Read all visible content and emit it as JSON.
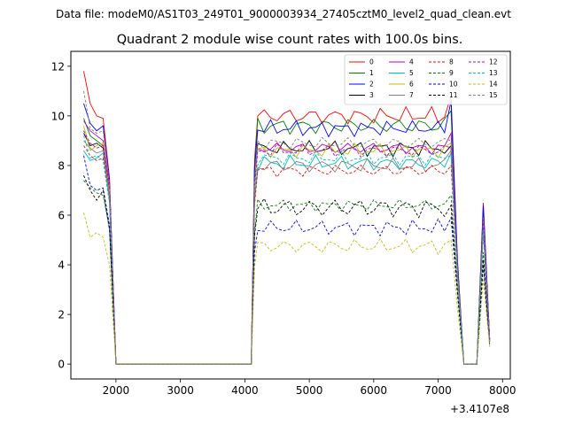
{
  "chart_data": {
    "type": "line",
    "suptitle": "Data file: modeM0/AS1T03_249T01_9000003934_27405cztM0_level2_quad_clean.evt",
    "title": "Quadrant 2 module wise count rates with 100.0s bins.",
    "xlabel": "",
    "ylabel": "",
    "x_offset_label": "+3.4107e8",
    "xlim": [
      1300,
      8120
    ],
    "ylim": [
      -0.6,
      12.6
    ],
    "xticks": [
      2000,
      3000,
      4000,
      5000,
      6000,
      7000,
      8000
    ],
    "xtick_labels": [
      "2000",
      "3000",
      "4000",
      "5000",
      "6000",
      "7000",
      "8000"
    ],
    "yticks": [
      0,
      2,
      4,
      6,
      8,
      10,
      12
    ],
    "ytick_labels": [
      "0",
      "2",
      "4",
      "6",
      "8",
      "10",
      "12"
    ],
    "legend_position": "upper right",
    "legend_columns": 4,
    "x": [
      1500,
      1600,
      1700,
      1800,
      1900,
      2000,
      4100,
      4200,
      4300,
      7200,
      7300,
      7400,
      7500,
      7600,
      7700,
      7800
    ],
    "series": [
      {
        "name": "0",
        "color": "#ff0000",
        "dashed": false,
        "start": [
          11.8,
          10.5,
          10.0,
          9.9,
          7.5
        ],
        "level": 10.0,
        "amp": 0.4,
        "end": [
          10.8,
          4.2
        ],
        "spike": 6.5,
        "last": 1.0
      },
      {
        "name": "1",
        "color": "#008000",
        "dashed": false,
        "start": [
          9.9,
          9.2,
          9.0,
          8.8,
          7.0
        ],
        "level": 9.6,
        "amp": 0.4,
        "end": [
          10.2,
          4.0
        ],
        "spike": 6.2,
        "last": 1.0
      },
      {
        "name": "2",
        "color": "#0000ff",
        "dashed": false,
        "start": [
          10.5,
          9.7,
          9.4,
          9.6,
          7.4
        ],
        "level": 9.5,
        "amp": 0.35,
        "end": [
          10.6,
          4.1
        ],
        "spike": 6.4,
        "last": 1.0
      },
      {
        "name": "3",
        "color": "#000000",
        "dashed": false,
        "start": [
          9.3,
          8.8,
          8.9,
          8.7,
          6.8
        ],
        "level": 8.7,
        "amp": 0.35,
        "end": [
          8.8,
          3.7
        ],
        "spike": 5.6,
        "last": 0.9
      },
      {
        "name": "4",
        "color": "#bf00bf",
        "dashed": false,
        "start": [
          9.8,
          9.4,
          9.2,
          9.0,
          7.2
        ],
        "level": 8.7,
        "amp": 0.3,
        "end": [
          9.3,
          3.8
        ],
        "spike": 5.9,
        "last": 1.0
      },
      {
        "name": "5",
        "color": "#00bfbf",
        "dashed": false,
        "start": [
          8.6,
          8.2,
          8.3,
          8.5,
          6.6
        ],
        "level": 8.1,
        "amp": 0.35,
        "end": [
          8.5,
          3.6
        ],
        "spike": 5.5,
        "last": 0.9
      },
      {
        "name": "6",
        "color": "#bfbf00",
        "dashed": false,
        "start": [
          9.6,
          8.6,
          8.8,
          8.9,
          6.9
        ],
        "level": 8.6,
        "amp": 0.3,
        "end": [
          8.9,
          3.7
        ],
        "spike": 5.7,
        "last": 0.9
      },
      {
        "name": "7",
        "color": "#808080",
        "dashed": false,
        "start": [
          9.0,
          8.7,
          8.5,
          8.6,
          6.7
        ],
        "level": 8.0,
        "amp": 0.35,
        "end": [
          8.6,
          3.6
        ],
        "spike": 5.5,
        "last": 0.9
      },
      {
        "name": "8",
        "color": "#ff0000",
        "dashed": true,
        "start": [
          8.8,
          8.4,
          8.2,
          8.3,
          6.5
        ],
        "level": 7.8,
        "amp": 0.3,
        "end": [
          8.0,
          3.5
        ],
        "spike": 5.3,
        "last": 0.9
      },
      {
        "name": "9",
        "color": "#008000",
        "dashed": true,
        "start": [
          7.4,
          7.1,
          6.9,
          6.8,
          5.5
        ],
        "level": 6.4,
        "amp": 0.25,
        "end": [
          6.8,
          3.0
        ],
        "spike": 4.5,
        "last": 0.8
      },
      {
        "name": "10",
        "color": "#0000ff",
        "dashed": true,
        "start": [
          8.4,
          7.2,
          7.0,
          7.1,
          5.6
        ],
        "level": 5.5,
        "amp": 0.35,
        "end": [
          5.9,
          2.8
        ],
        "spike": 4.0,
        "last": 0.8
      },
      {
        "name": "11",
        "color": "#000000",
        "dashed": true,
        "start": [
          7.6,
          7.0,
          6.6,
          7.0,
          5.4
        ],
        "level": 6.3,
        "amp": 0.5,
        "end": [
          6.4,
          2.9
        ],
        "spike": 4.2,
        "last": 0.8
      },
      {
        "name": "12",
        "color": "#bf00bf",
        "dashed": true,
        "start": [
          9.4,
          8.9,
          8.7,
          8.8,
          7.0
        ],
        "level": 8.6,
        "amp": 0.3,
        "end": [
          8.7,
          3.7
        ],
        "spike": 5.7,
        "last": 0.9
      },
      {
        "name": "13",
        "color": "#00bfbf",
        "dashed": true,
        "start": [
          9.2,
          8.3,
          8.4,
          8.2,
          6.5
        ],
        "level": 8.3,
        "amp": 0.3,
        "end": [
          8.4,
          3.6
        ],
        "spike": 5.4,
        "last": 0.9
      },
      {
        "name": "14",
        "color": "#bfbf00",
        "dashed": true,
        "start": [
          6.1,
          5.1,
          5.3,
          5.1,
          4.0
        ],
        "level": 4.75,
        "amp": 0.35,
        "end": [
          5.0,
          2.2
        ],
        "spike": 3.4,
        "last": 0.7
      },
      {
        "name": "15",
        "color": "#808080",
        "dashed": true,
        "start": [
          11.0,
          9.5,
          9.3,
          9.4,
          7.3
        ],
        "level": 8.9,
        "amp": 0.3,
        "end": [
          9.0,
          3.8
        ],
        "spike": 5.9,
        "last": 0.9
      }
    ]
  }
}
